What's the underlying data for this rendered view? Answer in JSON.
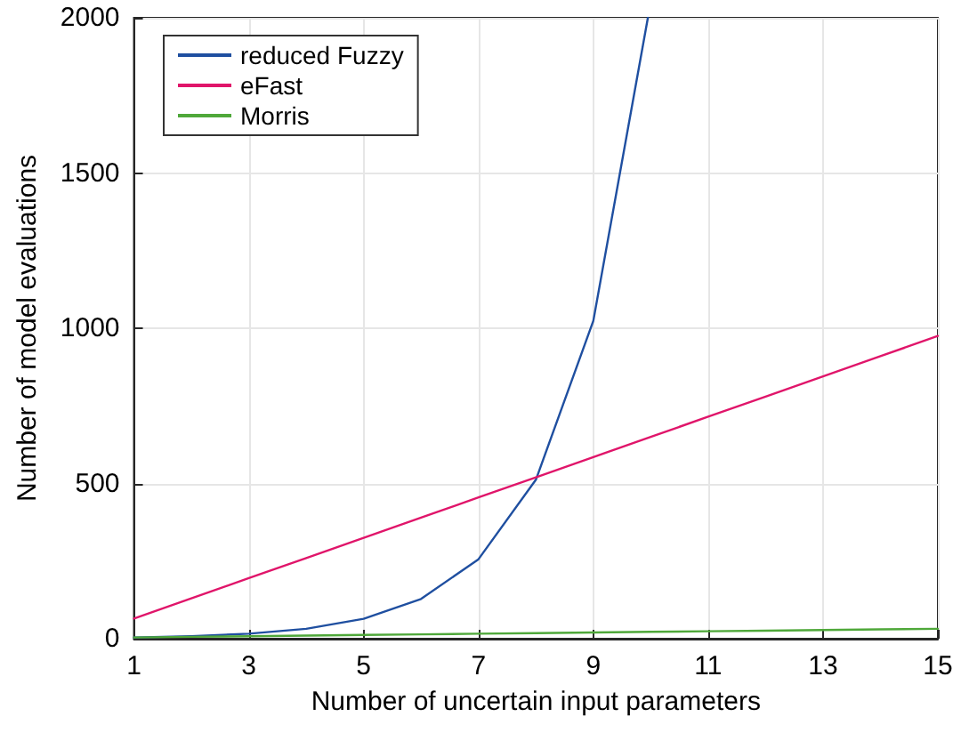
{
  "chart_data": {
    "type": "line",
    "xlabel": "Number of uncertain input parameters",
    "ylabel": "Number of model evaluations",
    "x": [
      1,
      2,
      3,
      4,
      5,
      6,
      7,
      8,
      9,
      10,
      11,
      12,
      13,
      14,
      15
    ],
    "series": [
      {
        "name": "reduced Fuzzy",
        "color": "#1f4fa0",
        "x": [
          1,
          2,
          3,
          4,
          5,
          6,
          7,
          8,
          9,
          9.95
        ],
        "values": [
          4,
          8,
          16,
          32,
          64,
          128,
          256,
          512,
          1024,
          2000
        ]
      },
      {
        "name": "eFast",
        "color": "#e0156a",
        "values": [
          65,
          130,
          195,
          260,
          325,
          390,
          455,
          520,
          585,
          650,
          715,
          780,
          845,
          910,
          975
        ]
      },
      {
        "name": "Morris",
        "color": "#4fa83a",
        "values": [
          4,
          6,
          8,
          10,
          12,
          14,
          16,
          18,
          20,
          22,
          24,
          26,
          28,
          30,
          32
        ]
      }
    ],
    "xlim": [
      1,
      15
    ],
    "xticks": [
      1,
      3,
      5,
      7,
      9,
      11,
      13,
      15
    ],
    "ylim": [
      0,
      2000
    ],
    "yticks": [
      0,
      500,
      1000,
      1500,
      2000
    ],
    "grid": true,
    "legend": "top left",
    "marker": "none",
    "line_style": "solid"
  }
}
